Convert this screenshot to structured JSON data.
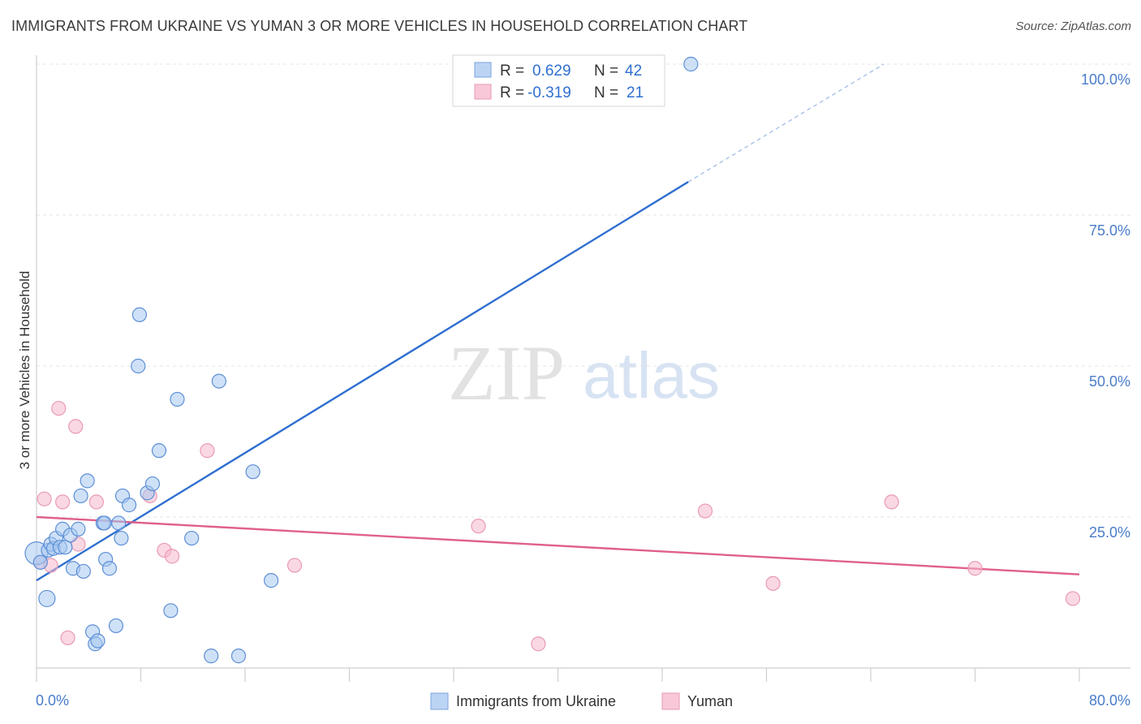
{
  "title": "IMMIGRANTS FROM UKRAINE VS YUMAN 3 OR MORE VEHICLES IN HOUSEHOLD CORRELATION CHART",
  "source": "Source: ZipAtlas.com",
  "watermark": {
    "zip": "ZIP",
    "atlas": "atlas"
  },
  "colors": {
    "blue": "#2f6fd0",
    "blue_fill": "#a8c8f0",
    "pink": "#e0608a",
    "pink_fill": "#f6b8cc",
    "tick": "#4a7cc9"
  },
  "legend": {
    "rows": [
      {
        "r_label": "R =",
        "r_value": "0.629",
        "n_label": "N =",
        "n_value": "42"
      },
      {
        "r_label": "R =",
        "r_value": "-0.319",
        "n_label": "N =",
        "n_value": "21"
      }
    ]
  },
  "bottom_legend": [
    "Immigrants from Ukraine",
    "Yuman"
  ],
  "chart_data": {
    "type": "scatter",
    "title": "IMMIGRANTS FROM UKRAINE VS YUMAN 3 OR MORE VEHICLES IN HOUSEHOLD CORRELATION CHART",
    "xlabel": "",
    "ylabel": "3 or more Vehicles in Household",
    "xlim": [
      0,
      80
    ],
    "ylim": [
      0,
      100
    ],
    "x_tick_labels": [
      "0.0%",
      "80.0%"
    ],
    "y_tick_labels": [
      "100.0%",
      "75.0%",
      "50.0%",
      "25.0%"
    ],
    "y_ticks": [
      100,
      75,
      50,
      25
    ],
    "grid": true,
    "legend_position": "top-center",
    "series": [
      {
        "name": "Immigrants from Ukraine",
        "r": 0.629,
        "n": 42,
        "trend": {
          "x": [
            0,
            50
          ],
          "y": [
            14.5,
            80.5
          ],
          "dashed_extension": {
            "x": [
              50,
              65
            ],
            "y": [
              80.5,
              100
            ]
          }
        },
        "points": [
          [
            0.0,
            19.0
          ],
          [
            0.3,
            17.5
          ],
          [
            0.8,
            11.5
          ],
          [
            0.9,
            19.5
          ],
          [
            1.1,
            20.5
          ],
          [
            1.3,
            19.8
          ],
          [
            1.5,
            21.5
          ],
          [
            1.8,
            20.0
          ],
          [
            2.0,
            23.0
          ],
          [
            2.2,
            20.0
          ],
          [
            2.6,
            22.0
          ],
          [
            2.8,
            16.5
          ],
          [
            3.2,
            23.0
          ],
          [
            3.4,
            28.5
          ],
          [
            3.6,
            16.0
          ],
          [
            3.9,
            31.0
          ],
          [
            4.3,
            6.0
          ],
          [
            4.5,
            4.0
          ],
          [
            4.7,
            4.5
          ],
          [
            5.1,
            24.0
          ],
          [
            5.3,
            18.0
          ],
          [
            5.6,
            16.5
          ],
          [
            6.1,
            7.0
          ],
          [
            6.3,
            24.0
          ],
          [
            6.5,
            21.5
          ],
          [
            6.6,
            28.5
          ],
          [
            7.1,
            27.0
          ],
          [
            7.8,
            50.0
          ],
          [
            7.9,
            58.5
          ],
          [
            8.5,
            29.0
          ],
          [
            8.9,
            30.5
          ],
          [
            9.4,
            36.0
          ],
          [
            10.3,
            9.5
          ],
          [
            10.8,
            44.5
          ],
          [
            11.9,
            21.5
          ],
          [
            13.4,
            2.0
          ],
          [
            14.0,
            47.5
          ],
          [
            15.5,
            2.0
          ],
          [
            16.6,
            32.5
          ],
          [
            18.0,
            14.5
          ],
          [
            50.2,
            100.0
          ],
          [
            5.2,
            24.0
          ]
        ]
      },
      {
        "name": "Yuman",
        "r": -0.319,
        "n": 21,
        "trend": {
          "x": [
            0,
            80
          ],
          "y": [
            25.0,
            15.5
          ]
        },
        "points": [
          [
            0.3,
            17.5
          ],
          [
            0.6,
            28.0
          ],
          [
            1.1,
            17.0
          ],
          [
            1.7,
            43.0
          ],
          [
            2.0,
            27.5
          ],
          [
            2.4,
            5.0
          ],
          [
            3.0,
            40.0
          ],
          [
            3.2,
            20.5
          ],
          [
            4.6,
            27.5
          ],
          [
            8.7,
            28.5
          ],
          [
            9.8,
            19.5
          ],
          [
            10.4,
            18.5
          ],
          [
            13.1,
            36.0
          ],
          [
            19.8,
            17.0
          ],
          [
            33.9,
            23.5
          ],
          [
            38.5,
            4.0
          ],
          [
            51.3,
            26.0
          ],
          [
            56.5,
            14.0
          ],
          [
            65.6,
            27.5
          ],
          [
            72.0,
            16.5
          ],
          [
            79.5,
            11.5
          ]
        ]
      }
    ]
  }
}
